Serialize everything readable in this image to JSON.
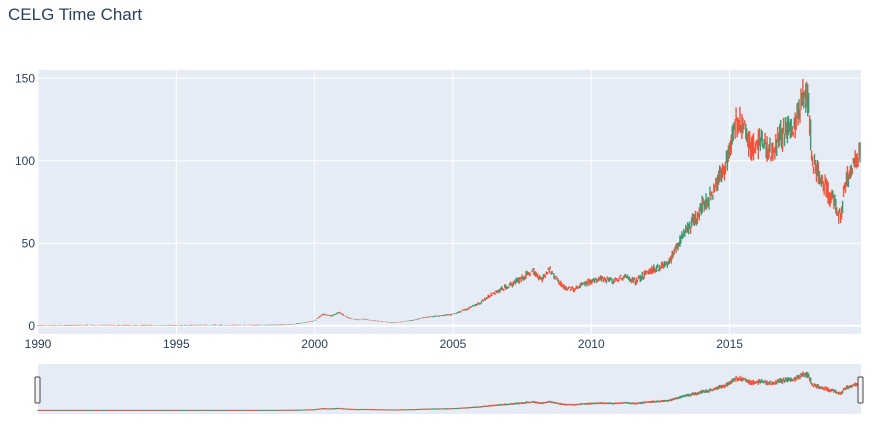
{
  "chart_data": {
    "type": "candlestick",
    "title": "CELG Time Chart",
    "xlabel": "",
    "ylabel": "",
    "ylim": [
      -5,
      155
    ],
    "xlim": [
      1990.0,
      2019.75
    ],
    "x_ticks": [
      "1990",
      "1995",
      "2000",
      "2005",
      "2010",
      "2015"
    ],
    "y_ticks": [
      "0",
      "50",
      "100",
      "150"
    ],
    "grid": true,
    "rangeslider": true,
    "colors": {
      "increasing": "#3d9970",
      "decreasing": "#ef553b",
      "plot_bg": "#e5ecf6",
      "grid": "#ffffff",
      "text": "#2a3f5f"
    },
    "series": [
      {
        "x": [
          1990.0,
          1991.0,
          1992.0,
          1993.0,
          1994.0,
          1995.0,
          1996.0,
          1997.0,
          1998.0,
          1999.0,
          1999.5,
          2000.0,
          2000.3,
          2000.6,
          2000.9,
          2001.2,
          2001.5,
          2001.8,
          2002.2,
          2002.5,
          2002.8,
          2003.2,
          2003.6,
          2004.0,
          2004.5,
          2005.0,
          2005.5,
          2006.0,
          2006.5,
          2007.0,
          2007.5,
          2007.9,
          2008.2,
          2008.5,
          2008.8,
          2009.1,
          2009.4,
          2009.7,
          2010.0,
          2010.4,
          2010.8,
          2011.2,
          2011.6,
          2012.0,
          2012.4,
          2012.8,
          2013.1,
          2013.4,
          2013.7,
          2014.0,
          2014.3,
          2014.6,
          2014.9,
          2015.1,
          2015.3,
          2015.5,
          2015.7,
          2015.9,
          2016.1,
          2016.3,
          2016.5,
          2016.7,
          2016.9,
          2017.1,
          2017.3,
          2017.5,
          2017.7,
          2017.85,
          2018.0,
          2018.2,
          2018.4,
          2018.6,
          2018.8,
          2019.0,
          2019.2,
          2019.4,
          2019.6,
          2019.75
        ],
        "close": [
          0.3,
          0.3,
          0.4,
          0.3,
          0.3,
          0.3,
          0.4,
          0.4,
          0.4,
          0.5,
          1.5,
          3.0,
          7.0,
          6.0,
          8.0,
          5.0,
          3.5,
          4.0,
          3.0,
          2.5,
          1.8,
          2.5,
          3.5,
          5.0,
          6.0,
          7.0,
          10.0,
          14.0,
          20.0,
          24.0,
          29.0,
          33.0,
          28.0,
          34.0,
          27.0,
          22.0,
          22.0,
          25.0,
          27.0,
          29.0,
          27.0,
          30.0,
          27.0,
          32.0,
          35.0,
          38.0,
          48.0,
          58.0,
          63.0,
          72.0,
          78.0,
          88.0,
          100.0,
          115.0,
          125.0,
          122.0,
          110.0,
          108.0,
          112.0,
          110.0,
          105.0,
          112.0,
          115.0,
          118.0,
          120.0,
          128.0,
          143.0,
          134.0,
          100.0,
          92.0,
          85.0,
          80.0,
          75.0,
          65.0,
          88.0,
          95.0,
          100.0,
          108.0
        ],
        "decreasing_points": [
          7,
          12,
          14,
          15,
          17,
          18,
          19,
          27,
          31,
          32,
          34,
          35,
          36,
          40,
          42,
          54,
          55,
          56,
          57,
          59,
          60,
          67,
          68,
          69,
          70,
          71,
          72,
          73
        ]
      }
    ]
  }
}
